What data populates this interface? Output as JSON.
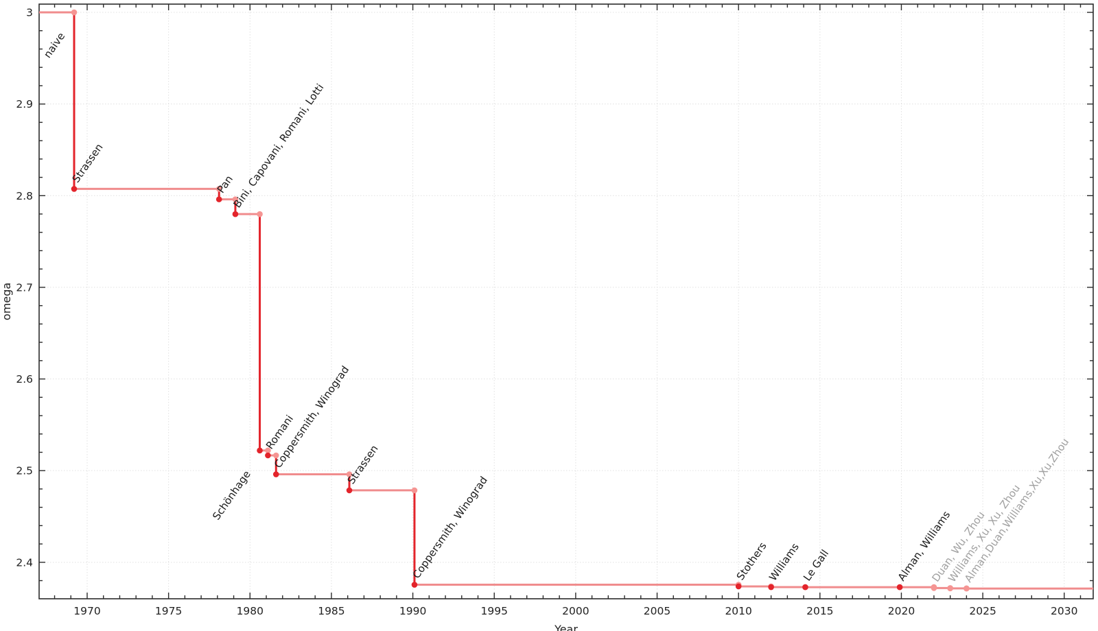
{
  "chart_data": {
    "type": "line",
    "subtype": "step-post",
    "title": "",
    "xlabel": "Year",
    "ylabel": "omega",
    "grid": true,
    "legend": "none",
    "xlim": [
      1967.05,
      2031.78
    ],
    "ylim": [
      2.3602,
      3.009
    ],
    "x_ticks": [
      1970,
      1975,
      1980,
      1985,
      1990,
      1995,
      2000,
      2005,
      2010,
      2015,
      2020,
      2025,
      2030
    ],
    "x_tick_labels": [
      "1970",
      "1975",
      "1980",
      "1985",
      "1990",
      "1995",
      "2000",
      "2005",
      "2010",
      "2015",
      "2020",
      "2025",
      "2030"
    ],
    "x_minor_step": 1,
    "y_ticks": [
      3.0,
      2.9,
      2.8,
      2.7,
      2.6,
      2.5,
      2.4
    ],
    "y_tick_labels": [
      "3",
      "2.9",
      "2.8",
      "2.7",
      "2.6",
      "2.5",
      "2.4"
    ],
    "y_minor_step": 0.02,
    "points": [
      {
        "label": "naive",
        "year": 1967.0,
        "omega": 3.0,
        "label_side": "below",
        "provisional": false
      },
      {
        "label": "Strassen",
        "year": 1969.2,
        "omega": 2.8074,
        "label_side": "above",
        "provisional": false
      },
      {
        "label": "Pan",
        "year": 1978.1,
        "omega": 2.796,
        "label_side": "above",
        "provisional": false
      },
      {
        "label": "Bini, Capovani, Romani, Lotti",
        "year": 1979.1,
        "omega": 2.7799,
        "label_side": "above",
        "provisional": false
      },
      {
        "label": "Schönhage",
        "year": 1980.6,
        "omega": 2.522,
        "label_side": "below",
        "provisional": false
      },
      {
        "label": "Romani",
        "year": 1981.1,
        "omega": 2.5166,
        "label_side": "above",
        "provisional": false
      },
      {
        "label": "Coppersmith, Winograd",
        "year": 1981.6,
        "omega": 2.496,
        "label_side": "above",
        "provisional": false
      },
      {
        "label": "Strassen",
        "year": 1986.1,
        "omega": 2.4785,
        "label_side": "above",
        "provisional": false
      },
      {
        "label": "Coppersmith, Winograd",
        "year": 1990.1,
        "omega": 2.3755,
        "label_side": "above",
        "provisional": false
      },
      {
        "label": "Stothers",
        "year": 2010.0,
        "omega": 2.3737,
        "label_side": "above",
        "provisional": false
      },
      {
        "label": "Williams",
        "year": 2012.0,
        "omega": 2.3729,
        "label_side": "above",
        "provisional": false
      },
      {
        "label": "Le Gall",
        "year": 2014.1,
        "omega": 2.37287,
        "label_side": "above",
        "provisional": false
      },
      {
        "label": "Alman, Williams",
        "year": 2019.9,
        "omega": 2.37286,
        "label_side": "above",
        "provisional": false
      },
      {
        "label": "Duan, Wu, Zhou",
        "year": 2022.0,
        "omega": 2.37188,
        "label_side": "above",
        "provisional": true
      },
      {
        "label": "Williams, Xu, Xu, Zhou",
        "year": 2023.0,
        "omega": 2.37155,
        "label_side": "above",
        "provisional": true
      },
      {
        "label": "Alman,Duan,Williams,Xu,Xu,Zhou",
        "year": 2024.0,
        "omega": 2.37134,
        "label_side": "above",
        "provisional": true
      }
    ]
  },
  "colors": {
    "step_vertical": "#e3242b",
    "step_horizontal": "#f08c8d",
    "marker_dark": "#e3242b",
    "marker_light": "#f59593",
    "annotation": "#1a1a1a",
    "annotation_provisional": "#a0a0a0",
    "grid": "#e0e0e0",
    "axis": "#2b2b2b",
    "tick_label": "#222222",
    "background": "#ffffff"
  }
}
